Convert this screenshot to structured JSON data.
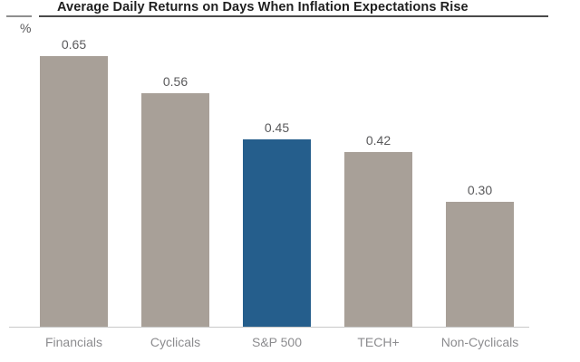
{
  "chart_data": {
    "type": "bar",
    "title": "Average Daily Returns on Days When Inflation Expectations Rise",
    "ylabel": "%",
    "categories": [
      "Financials",
      "Cyclicals",
      "S&P 500",
      "TECH+",
      "Non-Cyclicals"
    ],
    "values": [
      0.65,
      0.56,
      0.45,
      0.42,
      0.3
    ],
    "value_labels": [
      "0.65",
      "0.56",
      "0.45",
      "0.42",
      "0.30"
    ],
    "highlighted_category": "S&P 500",
    "colors": {
      "bar_default": "#a8a098",
      "bar_highlight": "#255e8c",
      "axis_line": "#c9c9c9",
      "title_text": "#1f1f1f",
      "value_text": "#59595b",
      "category_text": "#8c8c8f"
    },
    "ylim": [
      0,
      0.7
    ],
    "grid": false,
    "legend": false
  }
}
